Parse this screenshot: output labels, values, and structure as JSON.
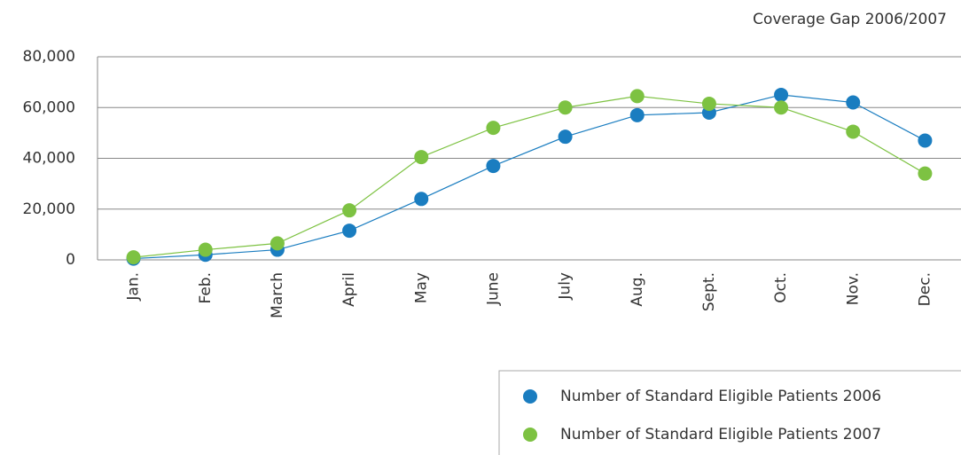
{
  "chart_data": {
    "type": "line",
    "title": "Coverage Gap 2006/2007",
    "categories": [
      "Jan.",
      "Feb.",
      "March",
      "April",
      "May",
      "June",
      "July",
      "Aug.",
      "Sept.",
      "Oct.",
      "Nov.",
      "Dec."
    ],
    "series": [
      {
        "name": "Number of Standard Eligible Patients 2006",
        "color": "#1a7dc0",
        "values": [
          500,
          2000,
          4000,
          11500,
          24000,
          37000,
          48500,
          57000,
          58000,
          65000,
          62000,
          47000
        ]
      },
      {
        "name": "Number of Standard Eligible Patients 2007",
        "color": "#7dc242",
        "values": [
          1000,
          4000,
          6500,
          19500,
          40500,
          52000,
          60000,
          64500,
          61500,
          60000,
          50500,
          34000
        ]
      }
    ],
    "ylim": [
      0,
      80000
    ],
    "yticks": [
      0,
      {
        "value": 20000,
        "label": "20,000"
      },
      {
        "value": 40000,
        "label": "40,000"
      },
      {
        "value": 60000,
        "label": "60,000"
      },
      {
        "value": 80000,
        "label": "80,000"
      }
    ],
    "grid": true
  }
}
